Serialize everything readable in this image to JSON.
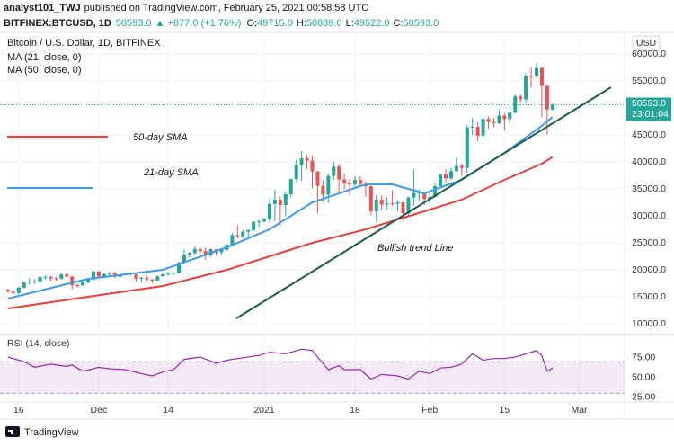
{
  "header": {
    "author": "analyst101_TWJ",
    "published": "published on TradingView.com, February 25, 2021 00:58:58 UTC",
    "symbol": "BITFINEX:BTCUSD, 1D",
    "price": "50593.0",
    "change": "▲ +877.0 (+1.76%)",
    "ohlc": [
      {
        "key": "O:",
        "value": "49715.0"
      },
      {
        "key": "H:",
        "value": "50889.0"
      },
      {
        "key": "L:",
        "value": "49522.0"
      },
      {
        "key": "C:",
        "value": "50593.0"
      }
    ]
  },
  "chart_data": {
    "type": "candlestick",
    "title": "Bitcoin / U.S. Dollar, 1D, BITFINEX",
    "currency": "USD",
    "up_color": "#26a69a",
    "down_color": "#ef5350",
    "grid": true,
    "xlim": [
      -1.5,
      115.5
    ],
    "xticks": [
      {
        "value": 2,
        "label": "16"
      },
      {
        "value": 17,
        "label": "Dec"
      },
      {
        "value": 30,
        "label": "14"
      },
      {
        "value": 48,
        "label": "2021"
      },
      {
        "value": 65,
        "label": "18"
      },
      {
        "value": 79,
        "label": "Feb"
      },
      {
        "value": 93,
        "label": "15"
      },
      {
        "value": 107,
        "label": "Mar"
      }
    ],
    "ylim": [
      8000,
      65000
    ],
    "yticks": [
      {
        "value": 10000,
        "label": "10000.0"
      },
      {
        "value": 15000,
        "label": "15000.0"
      },
      {
        "value": 20000,
        "label": "20000.0"
      },
      {
        "value": 25000,
        "label": "25000.0"
      },
      {
        "value": 30000,
        "label": "30000.0"
      },
      {
        "value": 35000,
        "label": "35000.0"
      },
      {
        "value": 40000,
        "label": "40000.0"
      },
      {
        "value": 45000,
        "label": "45000.0"
      },
      {
        "value": 50000,
        "label": "50000.0"
      },
      {
        "value": 55000,
        "label": "55000.0"
      },
      {
        "value": 60000,
        "label": "60000.0"
      }
    ],
    "open": [
      16300,
      15955,
      15700,
      16700,
      17650,
      17800,
      17820,
      18680,
      18700,
      18400,
      18370,
      19150,
      18730,
      17150,
      17140,
      17720,
      18180,
      19700,
      18790,
      19220,
      19450,
      18700,
      19150,
      19360,
      19170,
      18320,
      18550,
      18250,
      18030,
      18800,
      19170,
      19270,
      19440,
      21340,
      22800,
      23130,
      23860,
      23480,
      22730,
      23820,
      23240,
      23720,
      24660,
      26440,
      26250,
      27040,
      27360,
      28890,
      28980,
      29390,
      32190,
      33000,
      31990,
      33990,
      36820,
      39470,
      40670,
      40240,
      38240,
      35550,
      33930,
      37390,
      39140,
      36770,
      36020,
      35830,
      36630,
      35890,
      35470,
      30850,
      33000,
      32100,
      32290,
      32260,
      32510,
      30430,
      33400,
      34270,
      34320,
      33110,
      33520,
      35510,
      37620,
      36940,
      38290,
      39250,
      38870,
      46400,
      46500,
      44840,
      47970,
      47400,
      47190,
      48580,
      47910,
      49150,
      52120,
      51590,
      55910,
      55890,
      57410,
      54090,
      49715
    ],
    "high": [
      16500,
      16150,
      16850,
      17850,
      18450,
      18300,
      18800,
      18900,
      18850,
      18750,
      19400,
      19450,
      18900,
      17450,
      18000,
      18350,
      19850,
      19800,
      19350,
      19550,
      19550,
      19200,
      19400,
      19450,
      19300,
      18650,
      18900,
      18300,
      18950,
      19400,
      19600,
      19550,
      21550,
      23800,
      23300,
      24300,
      24150,
      24100,
      24050,
      23850,
      24050,
      24800,
      26800,
      28300,
      27400,
      27500,
      29000,
      29300,
      29600,
      33300,
      34800,
      33600,
      34500,
      36900,
      40400,
      41950,
      41400,
      41100,
      38300,
      36600,
      37800,
      40100,
      39700,
      37900,
      36800,
      37300,
      37400,
      36400,
      35600,
      33800,
      33800,
      33500,
      34800,
      32900,
      32600,
      33600,
      38600,
      34900,
      34400,
      34700,
      36000,
      37700,
      38700,
      38900,
      40900,
      39700,
      46800,
      48200,
      47300,
      48600,
      48400,
      48200,
      49700,
      49000,
      50600,
      52600,
      52500,
      56400,
      57500,
      58300,
      57500,
      54200,
      50889
    ],
    "low": [
      15700,
      15450,
      15500,
      16500,
      17300,
      17400,
      17700,
      18300,
      18000,
      18000,
      18200,
      18600,
      16400,
      16700,
      16950,
      17500,
      18050,
      18300,
      18450,
      18900,
      18550,
      18600,
      18950,
      18900,
      17800,
      17700,
      17900,
      17550,
      18000,
      18750,
      18950,
      19050,
      19300,
      21200,
      22300,
      22800,
      23050,
      21850,
      22400,
      22700,
      22800,
      23500,
      24500,
      25800,
      25900,
      25900,
      27200,
      27900,
      28700,
      28900,
      29000,
      28200,
      29900,
      33400,
      36300,
      36500,
      38700,
      35100,
      30400,
      32500,
      32400,
      36700,
      34400,
      34900,
      33900,
      35400,
      35400,
      33500,
      30100,
      28900,
      31000,
      31100,
      31900,
      30900,
      29300,
      29900,
      31900,
      32800,
      32000,
      32300,
      33400,
      35400,
      36200,
      36600,
      38200,
      37400,
      38000,
      45000,
      43800,
      44000,
      46200,
      46400,
      47000,
      45800,
      47200,
      48900,
      50800,
      50900,
      53800,
      55500,
      48200,
      45000,
      49522
    ],
    "close": [
      15955,
      15700,
      16700,
      17650,
      17800,
      17820,
      18680,
      18700,
      18400,
      18370,
      19150,
      18730,
      17150,
      17140,
      17720,
      18180,
      19700,
      18790,
      19220,
      19450,
      18700,
      19150,
      19360,
      19170,
      18320,
      18550,
      18250,
      18030,
      18800,
      19170,
      19270,
      19440,
      21340,
      22800,
      23130,
      23860,
      23480,
      22730,
      23820,
      23240,
      23720,
      24660,
      26440,
      26250,
      27040,
      27360,
      28890,
      28980,
      29390,
      32190,
      33000,
      31990,
      33990,
      36820,
      39470,
      40670,
      40240,
      38240,
      35550,
      33930,
      37390,
      39140,
      36770,
      36020,
      35830,
      36630,
      35890,
      35470,
      30850,
      33000,
      32100,
      32290,
      32260,
      32510,
      30430,
      33400,
      34270,
      34320,
      33110,
      33520,
      35510,
      37620,
      36940,
      38290,
      39250,
      38870,
      46400,
      46500,
      44840,
      47970,
      47400,
      47190,
      48580,
      47910,
      49150,
      52120,
      51590,
      55910,
      55890,
      57410,
      54090,
      49716,
      50593
    ],
    "series": [
      {
        "name": "MA (21, close, 0)",
        "color": "#3d9be9",
        "x": [
          0,
          15,
          29,
          41,
          49,
          57,
          67,
          72,
          78,
          85,
          93,
          100,
          102
        ],
        "values": [
          14667,
          18333,
          20000,
          24167,
          27500,
          32500,
          35833,
          35833,
          34167,
          36667,
          41667,
          46667,
          48300
        ]
      },
      {
        "name": "MA (50, close, 0)",
        "color": "#e8413b",
        "x": [
          0,
          15,
          29,
          41,
          49,
          57,
          67,
          78,
          85,
          93,
          100,
          102
        ],
        "values": [
          12833,
          15000,
          17000,
          20000,
          22500,
          25000,
          27500,
          30833,
          33000,
          36667,
          39667,
          40900
        ]
      }
    ],
    "annotations": [
      {
        "text": "50-day SMA",
        "color": "#e8413b"
      },
      {
        "text": "21-day SMA",
        "color": "#3d9be9"
      },
      {
        "text": "Bullish trend Line",
        "color": "#131722"
      }
    ],
    "last_price": {
      "value": 50593,
      "label": "50593.0"
    },
    "countdown": "23:01:04",
    "rsi": {
      "title": "RSI (14, close)",
      "color": "#9c27b0",
      "ylim": [
        19,
        101
      ],
      "band": [
        30,
        70
      ],
      "yticks": [
        {
          "value": 25,
          "label": "25.00"
        },
        {
          "value": 50,
          "label": "50.00"
        },
        {
          "value": 75,
          "label": "75.00"
        }
      ],
      "x": [
        0,
        3,
        5,
        8,
        11,
        12,
        14,
        17,
        19,
        22,
        25,
        27,
        29,
        31,
        33,
        36,
        39,
        41,
        44,
        47,
        49,
        52,
        55,
        57,
        58,
        60,
        62,
        63,
        66,
        68,
        70,
        73,
        75,
        77,
        79,
        81,
        83,
        85,
        87,
        89,
        91,
        93,
        95,
        97,
        99,
        100,
        101,
        102
      ],
      "values": [
        76,
        70,
        63,
        67,
        64,
        66,
        58,
        63,
        61,
        60,
        55,
        52,
        57,
        60,
        73,
        76,
        68,
        72,
        75,
        78,
        82,
        80,
        86,
        84,
        76,
        60,
        65,
        60,
        60,
        48,
        54,
        52,
        48,
        58,
        55,
        62,
        63,
        67,
        80,
        72,
        74,
        74,
        76,
        80,
        84,
        78,
        58,
        62
      ]
    }
  },
  "footer": {
    "brand": "TradingView"
  }
}
